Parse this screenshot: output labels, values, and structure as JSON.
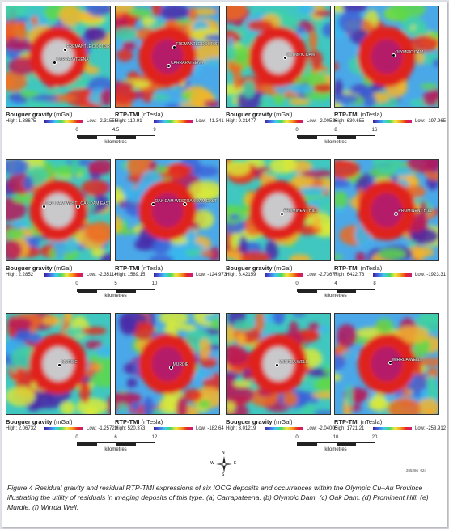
{
  "panels": [
    {
      "id": "a",
      "g_title_b": "Bouguer gravity",
      "g_title_u": "(mGal)",
      "g_high": "High: 1.38675",
      "g_low": "Low: -2.31555",
      "r_title_b": "RTP-TMI",
      "r_title_u": "(nTesla)",
      "r_high": "High: 110.91",
      "r_low": "Low: -41.341",
      "labels_g": [
        "FREMANTLE DOCTOR",
        "CARRAPATEENA"
      ],
      "labels_r": [
        "FREMANTLE DOCTOR",
        "CARRAPATEENA"
      ],
      "ticks": [
        "0",
        "4.5",
        "9"
      ],
      "km": "kilometres"
    },
    {
      "id": "b",
      "g_title_b": "Bouguer gravity",
      "g_title_u": "(mGal)",
      "g_high": "High: 9.31477",
      "g_low": "Low: -2.00526",
      "r_title_b": "RTP-TMI",
      "r_title_u": "(nTesla)",
      "r_high": "High: 630.655",
      "r_low": "Low: -197.965",
      "labels_g": [
        "OLYMPIC DAM"
      ],
      "labels_r": [
        "OLYMPIC DAM"
      ],
      "ticks": [
        "0",
        "8",
        "16"
      ],
      "km": "kilometres"
    },
    {
      "id": "c",
      "g_title_b": "Bouguer gravity",
      "g_title_u": "(mGal)",
      "g_high": "High: 2.2852",
      "g_low": "Low: -2.35114",
      "r_title_b": "RTP-TMI",
      "r_title_u": "(nTesla)",
      "r_high": "High: 1589.15",
      "r_low": "Low: -124.973",
      "labels_g": [
        "OAK DAM WEST",
        "OAK DAM EAST"
      ],
      "labels_r": [
        "OAK DAM WEST",
        "OAK DAM EAST"
      ],
      "ticks": [
        "0",
        "5",
        "10"
      ],
      "km": "kilometres"
    },
    {
      "id": "d",
      "g_title_b": "Bouguer gravity",
      "g_title_u": "(mGal)",
      "g_high": "High: 8.42159",
      "g_low": "Low: -2.73677",
      "r_title_b": "RTP-TMI",
      "r_title_u": "(nTesla)",
      "r_high": "High: 6422.73",
      "r_low": "Low: -1923.31",
      "labels_g": [
        "PROMINENT HILL"
      ],
      "labels_r": [
        "PROMINENT HILL"
      ],
      "ticks": [
        "0",
        "4",
        "8"
      ],
      "km": "kilometres"
    },
    {
      "id": "e",
      "g_title_b": "Bouguer gravity",
      "g_title_u": "(mGal)",
      "g_high": "High: 2.06732",
      "g_low": "Low: -1.25723",
      "r_title_b": "RTP-TMI",
      "r_title_u": "(nTesla)",
      "r_high": "High: 520.373",
      "r_low": "Low: -182.64",
      "labels_g": [
        "MURDIE"
      ],
      "labels_r": [
        "MURDIE"
      ],
      "ticks": [
        "0",
        "6",
        "12"
      ],
      "km": "kilometres"
    },
    {
      "id": "f",
      "g_title_b": "Bouguer gravity",
      "g_title_u": "(mGal)",
      "g_high": "High: 3.01219",
      "g_low": "Low: -2.04005",
      "r_title_b": "RTP-TMI",
      "r_title_u": "(nTesla)",
      "r_high": "High: 1721.21",
      "r_low": "Low: -253.912",
      "labels_g": [
        "WIRRDA WELL"
      ],
      "labels_r": [
        "WIRRDA WELL"
      ],
      "ticks": [
        "0",
        "10",
        "20"
      ],
      "km": "kilometres"
    }
  ],
  "code": "265266_024",
  "caption": "Figure 4 Residual gravity and residual RTP-TMI expressions of six IOCG deposits and occurrences within the Olympic Cu–Au Province illustrating the utility of residuals in imaging deposits of this type. (a) Carrapateena. (b) Olympic Dam. (c) Oak Dam. (d) Prominent Hill. (e) Murdie. (f) Wirrda Well.",
  "compass": {
    "n": "N",
    "s": "S",
    "e": "E",
    "w": "W"
  },
  "colors": {
    "low": "#3b1fa0",
    "mid": "#48d66a",
    "high": "#e52620",
    "peak": "#c81a8c"
  }
}
